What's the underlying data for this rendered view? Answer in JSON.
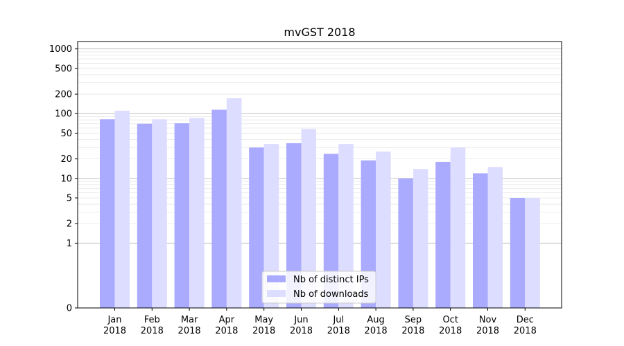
{
  "chart_data": {
    "type": "bar",
    "title": "mvGST 2018",
    "xlabel": "",
    "ylabel": "",
    "yscale": "symlog",
    "ylim": [
      0,
      1300
    ],
    "y_ticks": [
      0,
      1,
      2,
      5,
      10,
      20,
      50,
      100,
      200,
      500,
      1000
    ],
    "categories": [
      [
        "Jan",
        "2018"
      ],
      [
        "Feb",
        "2018"
      ],
      [
        "Mar",
        "2018"
      ],
      [
        "Apr",
        "2018"
      ],
      [
        "May",
        "2018"
      ],
      [
        "Jun",
        "2018"
      ],
      [
        "Jul",
        "2018"
      ],
      [
        "Aug",
        "2018"
      ],
      [
        "Sep",
        "2018"
      ],
      [
        "Oct",
        "2018"
      ],
      [
        "Nov",
        "2018"
      ],
      [
        "Dec",
        "2018"
      ]
    ],
    "series": [
      {
        "name": "Nb of distinct IPs",
        "color": "#aaaaff",
        "values": [
          82,
          70,
          71,
          115,
          30,
          35,
          24,
          19,
          10,
          18,
          12,
          5
        ]
      },
      {
        "name": "Nb of downloads",
        "color": "#ddddff",
        "values": [
          111,
          82,
          86,
          173,
          34,
          58,
          34,
          26,
          14,
          30,
          15,
          5
        ]
      }
    ],
    "legend_position": "lower-center",
    "grid": true
  }
}
